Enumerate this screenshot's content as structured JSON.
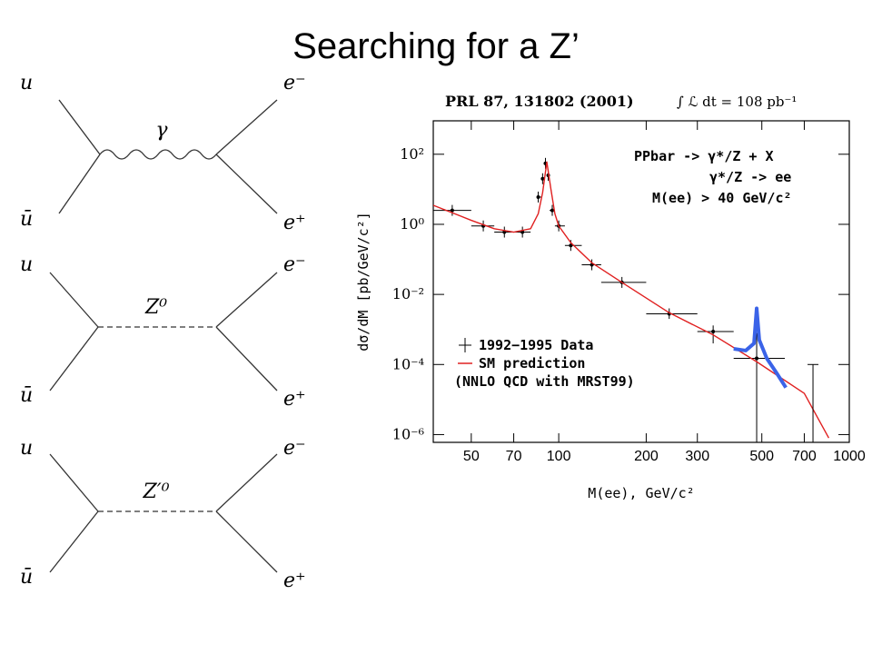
{
  "title": "Searching for a Z’",
  "diagrams": [
    {
      "mediator": "γ",
      "labels": [
        "u",
        "ū",
        "e⁻",
        "e⁺"
      ]
    },
    {
      "mediator": "Z⁰",
      "labels": [
        "u",
        "ū",
        "e⁻",
        "e⁺"
      ]
    },
    {
      "mediator": "Z′⁰",
      "labels": [
        "u",
        "ū",
        "e⁻",
        "e⁺"
      ]
    }
  ],
  "chart_data": {
    "type": "line",
    "header": "PRL 87, 131802 (2001)",
    "luminosity": "∫ ℒ dt = 108 pb⁻¹",
    "annotations": [
      "PPbar -> γ*/Z + X",
      "γ*/Z -> ee",
      "M(ee) > 40 GeV/c²"
    ],
    "legend_note": "(NNLO QCD with MRST99)",
    "xlabel": "M(ee), GeV/c²",
    "ylabel": "dσ/dM [pb/GeV/c²]",
    "xscale": "log",
    "yscale": "log",
    "xlim": [
      37,
      1000
    ],
    "ylim": [
      6e-07,
      900
    ],
    "xticks": [
      50,
      70,
      100,
      200,
      300,
      500,
      700,
      1000
    ],
    "yticks": [
      {
        "value": 100,
        "label": "10²"
      },
      {
        "value": 1,
        "label": "10⁰"
      },
      {
        "value": 0.01,
        "label": "10⁻²"
      },
      {
        "value": 0.0001,
        "label": "10⁻⁴"
      },
      {
        "value": 1e-06,
        "label": "10⁻⁶"
      }
    ],
    "series": [
      {
        "name": "1992−1995 Data",
        "color": "#000000",
        "style": "points",
        "x": [
          43,
          55,
          65,
          75,
          85,
          88,
          90,
          92,
          95,
          100,
          110,
          130,
          165,
          240,
          340,
          480
        ],
        "values": [
          2.5,
          0.9,
          0.6,
          0.6,
          6,
          20,
          55,
          25,
          2.5,
          0.9,
          0.25,
          0.07,
          0.022,
          0.0028,
          0.00087,
          0.00015
        ],
        "x_low": [
          36,
          50,
          60,
          70,
          84,
          87,
          89,
          91,
          93,
          97,
          105,
          120,
          140,
          200,
          300,
          400
        ],
        "x_high": [
          50,
          60,
          70,
          80,
          87,
          89,
          91,
          93,
          97,
          105,
          120,
          140,
          200,
          300,
          400,
          600
        ],
        "y_low": [
          null,
          null,
          null,
          null,
          null,
          null,
          null,
          null,
          null,
          null,
          null,
          null,
          null,
          0.002,
          0.0004,
          1e-07
        ],
        "y_high": [
          null,
          null,
          null,
          null,
          null,
          null,
          null,
          null,
          null,
          null,
          null,
          null,
          null,
          0.004,
          0.0013,
          0.0008
        ]
      },
      {
        "name": "SM prediction",
        "color": "#e02020",
        "style": "line",
        "x": [
          37,
          50,
          60,
          70,
          80,
          85,
          88,
          91,
          94,
          97,
          100,
          110,
          130,
          165,
          240,
          340,
          480,
          700,
          850
        ],
        "values": [
          3.5,
          1.3,
          0.75,
          0.6,
          0.75,
          2,
          8,
          60,
          10,
          2,
          0.9,
          0.3,
          0.08,
          0.022,
          0.003,
          0.0007,
          0.00012,
          1.5e-05,
          8e-07
        ]
      },
      {
        "color": "#3a63e8",
        "style": "line",
        "x": [
          400,
          440,
          470,
          480,
          490,
          520,
          560,
          605
        ],
        "values": [
          0.00028,
          0.00025,
          0.0004,
          0.004,
          0.0005,
          0.00015,
          6e-05,
          2.2e-05
        ]
      }
    ],
    "upper_limits": {
      "x": [
        750
      ],
      "values": [
        0.0001
      ]
    }
  }
}
